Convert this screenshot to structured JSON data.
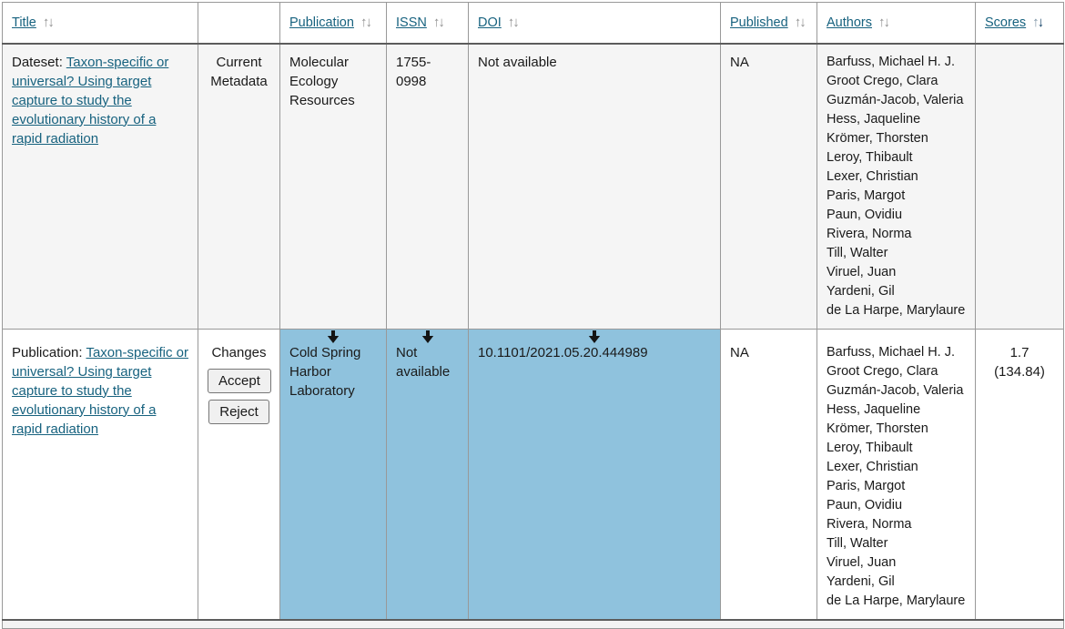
{
  "icons": {
    "sort_up": "↑",
    "sort_down": "↓"
  },
  "colors": {
    "highlight_blue": "#8fc2dd",
    "link": "#17627f",
    "alt_row_bg": "#f5f5f5",
    "active_sort_arrow": "#0e3d63",
    "inactive_sort_arrow": "#8f8f8f"
  },
  "header": {
    "title": "Title",
    "actions": "",
    "publication": "Publication",
    "issn": "ISSN",
    "doi": "DOI",
    "published": "Published",
    "authors": "Authors",
    "scores": "Scores",
    "sorted_column": "Scores",
    "sorted_direction": "descending"
  },
  "rows": [
    {
      "prefix": "Dateset:",
      "title": "Taxon-specific or universal? Using target capture to study the evolutionary history of a rapid radiation",
      "meta_label": "Current Metadata",
      "publication": "Molecular Ecology Resources",
      "issn": "1755-0998",
      "doi": "Not available",
      "published": "NA",
      "authors": [
        "Barfuss, Michael H. J.",
        "Groot Crego, Clara",
        "Guzmán-Jacob, Valeria",
        "Hess, Jaqueline",
        "Krömer, Thorsten",
        "Leroy, Thibault",
        "Lexer, Christian",
        "Paris, Margot",
        "Paun, Ovidiu",
        "Rivera, Norma",
        "Till, Walter",
        "Viruel, Juan",
        "Yardeni, Gil",
        "de La Harpe, Marylaure"
      ],
      "score_value": "",
      "score_detail": ""
    },
    {
      "prefix": "Publication:",
      "title": "Taxon-specific or universal? Using target capture to study the evolutionary history of a rapid radiation",
      "meta_label": "Changes",
      "accept_label": "Accept",
      "reject_label": "Reject",
      "publication": "Cold Spring Harbor Laboratory",
      "issn": "Not available",
      "doi": "10.1101/2021.05.20.444989",
      "published": "NA",
      "authors": [
        "Barfuss, Michael H. J.",
        "Groot Crego, Clara",
        "Guzmán-Jacob, Valeria",
        "Hess, Jaqueline",
        "Krömer, Thorsten",
        "Leroy, Thibault",
        "Lexer, Christian",
        "Paris, Margot",
        "Paun, Ovidiu",
        "Rivera, Norma",
        "Till, Walter",
        "Viruel, Juan",
        "Yardeni, Gil",
        "de La Harpe, Marylaure"
      ],
      "score_value": "1.7",
      "score_detail": "(134.84)",
      "changed_fields": "publication, issn, doi"
    }
  ]
}
